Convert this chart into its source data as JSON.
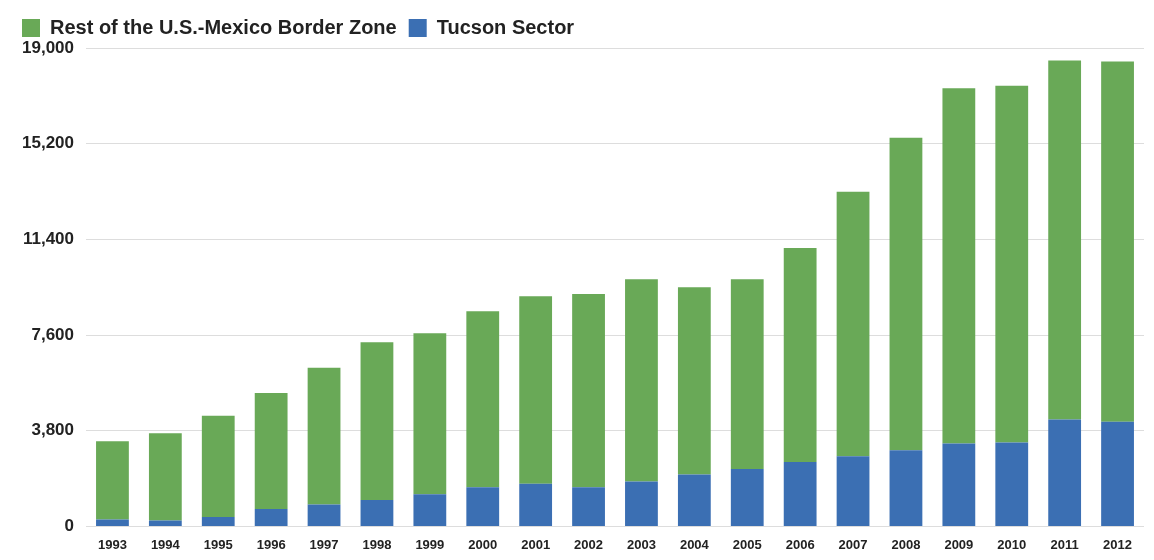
{
  "chart_data": {
    "type": "bar",
    "stacked": true,
    "categories": [
      "1993",
      "1994",
      "1995",
      "1996",
      "1997",
      "1998",
      "1999",
      "2000",
      "2001",
      "2002",
      "2003",
      "2004",
      "2005",
      "2006",
      "2007",
      "2008",
      "2009",
      "2010",
      "2011",
      "2012"
    ],
    "series": [
      {
        "name": "Tucson Sector",
        "color": "#3b6fb3",
        "values": [
          270,
          230,
          370,
          690,
          870,
          1050,
          1280,
          1550,
          1690,
          1550,
          1780,
          2060,
          2280,
          2560,
          2790,
          3020,
          3290,
          3330,
          4250,
          4160
        ]
      },
      {
        "name": "Rest of the U.S.-Mexico Border Zone",
        "color": "#69a957",
        "values": [
          3110,
          3470,
          4020,
          4610,
          5430,
          6260,
          6390,
          6990,
          7450,
          7680,
          8040,
          7440,
          7540,
          8500,
          10500,
          12420,
          14110,
          14170,
          14250,
          14300
        ]
      }
    ],
    "ylim": [
      0,
      19000
    ],
    "yticks": [
      0,
      {
        "value": 3800,
        "label": "3,800"
      },
      {
        "value": 7600,
        "label": "7,600"
      },
      {
        "value": 11400,
        "label": "11,400"
      },
      {
        "value": 15200,
        "label": "15,200"
      },
      {
        "value": 19000,
        "label": "19,000"
      }
    ],
    "grid": "y",
    "legend": "top left"
  }
}
